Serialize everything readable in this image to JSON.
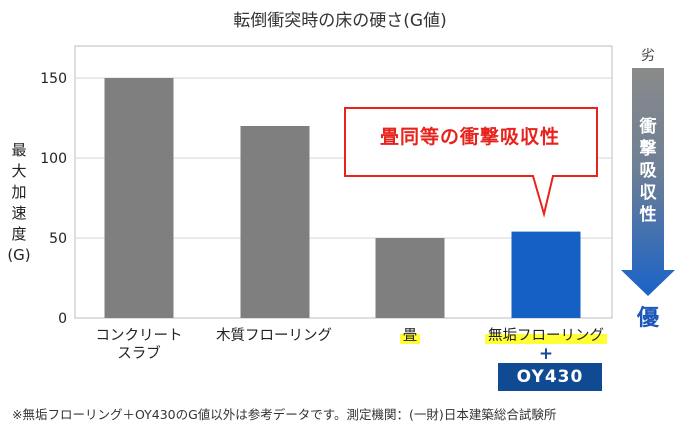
{
  "chart_data": {
    "type": "bar",
    "title": "転倒衝突時の床の硬さ(G値)",
    "ylabel": [
      "最",
      "大",
      "加",
      "速",
      "度",
      "(G)"
    ],
    "ylim": [
      0,
      170
    ],
    "yticks": [
      0,
      50,
      100,
      150
    ],
    "grid": true,
    "categories": [
      {
        "lines": [
          "コンクリート",
          "スラブ"
        ],
        "highlight": false
      },
      {
        "lines": [
          "木質フローリング"
        ],
        "highlight": false
      },
      {
        "lines": [
          "畳"
        ],
        "highlight": true
      },
      {
        "lines": [
          "無垢フローリング"
        ],
        "highlight": true
      }
    ],
    "values": [
      150,
      120,
      50,
      54
    ],
    "bar_colors": [
      "#7f7f7f",
      "#7f7f7f",
      "#7f7f7f",
      "#1560c4"
    ],
    "annotation": "畳同等の衝撃吸収性"
  },
  "product": {
    "plus": "+",
    "name": "OY430"
  },
  "scale_arrow": {
    "top_label": "劣",
    "side_text": [
      "衝",
      "撃",
      "吸",
      "収",
      "性"
    ],
    "bottom_label": "優"
  },
  "footnote": "※無垢フローリング＋OY430のG値以外は参考データです。測定機関：(一財)日本建築総合試験所"
}
